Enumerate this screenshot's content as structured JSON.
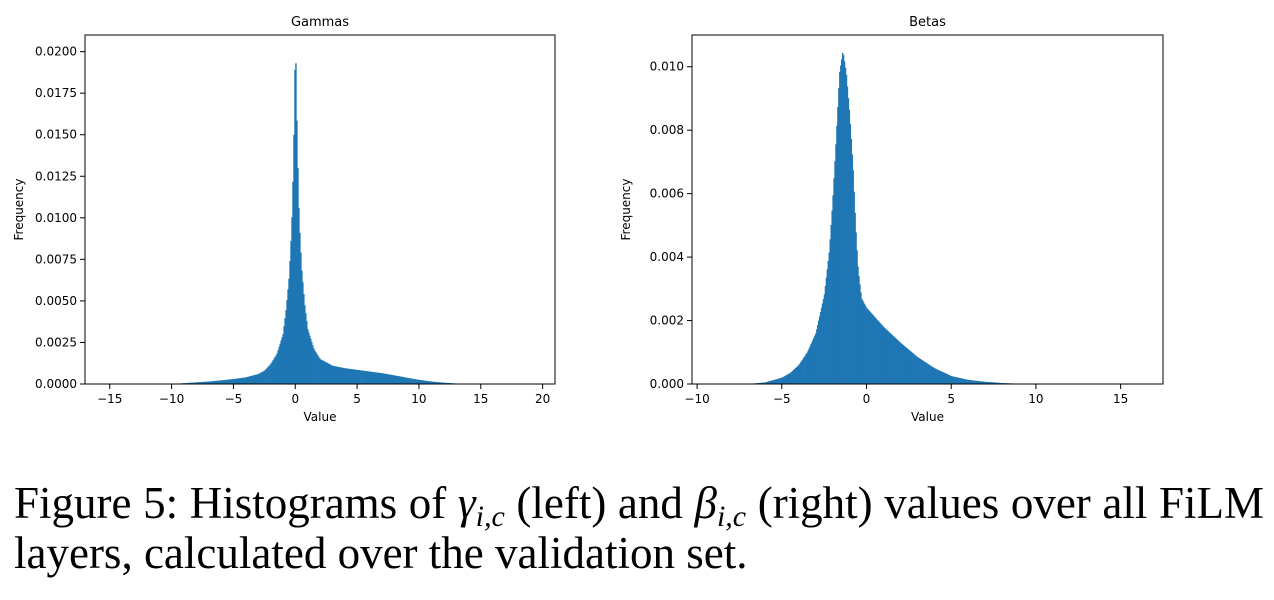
{
  "caption": {
    "label": "Figure 5:",
    "text_1": "Histograms of",
    "symbol_1": "γ",
    "sub_1": "i,c",
    "text_2": "(left) and",
    "symbol_2": "β",
    "sub_2": "i,c",
    "text_3": "(right) values over all FiLM layers, calculated over the validation set."
  },
  "chart_data": [
    {
      "type": "bar",
      "title": "Gammas",
      "xlabel": "Value",
      "ylabel": "Frequency",
      "xlim": [
        -17,
        21
      ],
      "ylim": [
        0,
        0.021
      ],
      "xticks": [
        -15,
        -10,
        -5,
        0,
        5,
        10,
        15,
        20
      ],
      "yticks": [
        0.0,
        0.0025,
        0.005,
        0.0075,
        0.01,
        0.0125,
        0.015,
        0.0175,
        0.02
      ],
      "ytick_labels": [
        "0.0000",
        "0.0025",
        "0.0050",
        "0.0075",
        "0.0100",
        "0.0125",
        "0.0150",
        "0.0175",
        "0.0200"
      ],
      "color": "#1f77b4",
      "x": [
        -10,
        -9,
        -8,
        -7,
        -6,
        -5,
        -4,
        -3,
        -2.5,
        -2,
        -1.5,
        -1,
        -0.75,
        -0.5,
        -0.3,
        -0.15,
        -0.05,
        0,
        0.05,
        0.15,
        0.3,
        0.5,
        0.75,
        1,
        1.5,
        2,
        3,
        4,
        5,
        6,
        7,
        8,
        9,
        10,
        11,
        12,
        13,
        14
      ],
      "y": [
        0.0,
        5e-05,
        0.0001,
        0.00015,
        0.00022,
        0.0003,
        0.0004,
        0.0006,
        0.0008,
        0.0012,
        0.0018,
        0.003,
        0.0045,
        0.0065,
        0.0095,
        0.0135,
        0.0185,
        0.0205,
        0.019,
        0.0145,
        0.01,
        0.007,
        0.0048,
        0.0033,
        0.0021,
        0.0015,
        0.0011,
        0.00095,
        0.00085,
        0.00075,
        0.00065,
        0.00052,
        0.00038,
        0.00025,
        0.00015,
        8e-05,
        3e-05,
        0.0
      ]
    },
    {
      "type": "bar",
      "title": "Betas",
      "xlabel": "Value",
      "ylabel": "Frequency",
      "xlim": [
        -10.3,
        17.5
      ],
      "ylim": [
        0,
        0.011
      ],
      "xticks": [
        -10,
        -5,
        0,
        5,
        10,
        15
      ],
      "yticks": [
        0.0,
        0.002,
        0.004,
        0.006,
        0.008,
        0.01
      ],
      "ytick_labels": [
        "0.000",
        "0.002",
        "0.004",
        "0.006",
        "0.008",
        "0.010"
      ],
      "color": "#1f77b4",
      "x": [
        -7,
        -6,
        -5,
        -4.5,
        -4,
        -3.5,
        -3,
        -2.5,
        -2.2,
        -2,
        -1.8,
        -1.6,
        -1.4,
        -1.2,
        -1,
        -0.8,
        -0.7,
        -0.6,
        -0.5,
        -0.3,
        0,
        0.5,
        1,
        2,
        3,
        4,
        5,
        6,
        7,
        8,
        9,
        10
      ],
      "y": [
        0.0,
        5e-05,
        0.0002,
        0.00035,
        0.0006,
        0.001,
        0.0016,
        0.0028,
        0.0042,
        0.0058,
        0.0077,
        0.0098,
        0.0105,
        0.0098,
        0.0085,
        0.0068,
        0.0056,
        0.0045,
        0.0036,
        0.0027,
        0.0024,
        0.0021,
        0.0018,
        0.0013,
        0.00085,
        0.0005,
        0.00025,
        0.00013,
        7e-05,
        3e-05,
        1e-05,
        0.0
      ]
    }
  ]
}
